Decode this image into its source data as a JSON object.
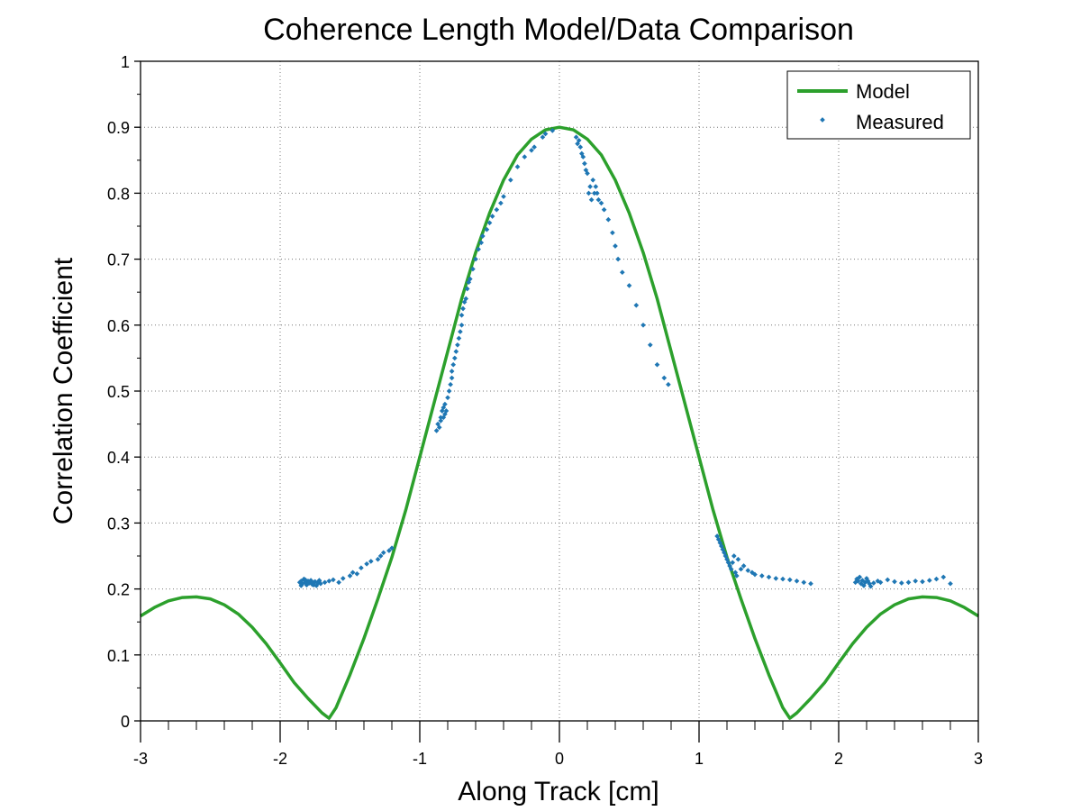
{
  "chart_data": {
    "type": "scatter",
    "title": "Coherence Length Model/Data Comparison",
    "xlabel": "Along Track [cm]",
    "ylabel": "Correlation Coefficient",
    "xlim": [
      -3,
      3
    ],
    "ylim": [
      0,
      1
    ],
    "x_ticks": [
      "-3",
      "-2",
      "-1",
      "0",
      "1",
      "2",
      "3"
    ],
    "x_tick_values": [
      -3,
      -2,
      -1,
      0,
      1,
      2,
      3
    ],
    "y_ticks": [
      "0",
      "0.1",
      "0.2",
      "0.3",
      "0.4",
      "0.5",
      "0.6",
      "0.7",
      "0.8",
      "0.9",
      "1"
    ],
    "y_tick_values": [
      0,
      0.1,
      0.2,
      0.3,
      0.4,
      0.5,
      0.6,
      0.7,
      0.8,
      0.9,
      1
    ],
    "grid": true,
    "legend_position": "top-right",
    "series": [
      {
        "name": "Model",
        "kind": "line",
        "color": "#2ca02c",
        "x": [
          -3.0,
          -2.9,
          -2.8,
          -2.7,
          -2.6,
          -2.5,
          -2.4,
          -2.3,
          -2.2,
          -2.1,
          -2.0,
          -1.9,
          -1.8,
          -1.7,
          -1.65,
          -1.6,
          -1.5,
          -1.4,
          -1.3,
          -1.2,
          -1.1,
          -1.0,
          -0.9,
          -0.8,
          -0.7,
          -0.6,
          -0.5,
          -0.4,
          -0.3,
          -0.2,
          -0.1,
          0.0,
          0.1,
          0.2,
          0.3,
          0.4,
          0.5,
          0.6,
          0.7,
          0.8,
          0.9,
          1.0,
          1.1,
          1.2,
          1.3,
          1.4,
          1.5,
          1.6,
          1.65,
          1.7,
          1.8,
          1.9,
          2.0,
          2.1,
          2.2,
          2.3,
          2.4,
          2.5,
          2.6,
          2.7,
          2.8,
          2.9,
          3.0
        ],
        "y": [
          0.159,
          0.172,
          0.182,
          0.187,
          0.188,
          0.185,
          0.176,
          0.162,
          0.142,
          0.117,
          0.088,
          0.058,
          0.034,
          0.012,
          0.004,
          0.02,
          0.07,
          0.125,
          0.185,
          0.248,
          0.32,
          0.4,
          0.48,
          0.56,
          0.64,
          0.71,
          0.77,
          0.82,
          0.858,
          0.882,
          0.896,
          0.9,
          0.896,
          0.882,
          0.858,
          0.82,
          0.77,
          0.71,
          0.64,
          0.56,
          0.48,
          0.4,
          0.32,
          0.248,
          0.185,
          0.125,
          0.07,
          0.02,
          0.004,
          0.012,
          0.034,
          0.058,
          0.088,
          0.117,
          0.142,
          0.162,
          0.176,
          0.185,
          0.188,
          0.187,
          0.182,
          0.172,
          0.159
        ]
      },
      {
        "name": "Measured",
        "kind": "scatter",
        "color": "#1f77b4",
        "x": [
          -1.86,
          -1.85,
          -1.84,
          -1.83,
          -1.82,
          -1.81,
          -1.8,
          -1.79,
          -1.78,
          -1.77,
          -1.76,
          -1.75,
          -1.74,
          -1.73,
          -1.72,
          -1.71,
          -1.85,
          -1.82,
          -1.79,
          -1.76,
          -1.72,
          -1.68,
          -1.65,
          -1.62,
          -1.58,
          -1.55,
          -1.5,
          -1.48,
          -1.45,
          -1.42,
          -1.38,
          -1.35,
          -1.3,
          -1.28,
          -1.26,
          -1.22,
          -1.2,
          -0.88,
          -0.87,
          -0.86,
          -0.85,
          -0.85,
          -0.84,
          -0.83,
          -0.83,
          -0.82,
          -0.82,
          -0.81,
          -0.8,
          -0.79,
          -0.78,
          -0.77,
          -0.77,
          -0.76,
          -0.75,
          -0.74,
          -0.73,
          -0.72,
          -0.71,
          -0.7,
          -0.7,
          -0.69,
          -0.68,
          -0.67,
          -0.66,
          -0.65,
          -0.64,
          -0.62,
          -0.6,
          -0.58,
          -0.56,
          -0.55,
          -0.52,
          -0.5,
          -0.48,
          -0.45,
          -0.42,
          -0.4,
          -0.35,
          -0.3,
          -0.25,
          -0.2,
          -0.18,
          -0.12,
          -0.1,
          -0.05,
          0.12,
          0.13,
          0.14,
          0.15,
          0.16,
          0.17,
          0.18,
          0.19,
          0.2,
          0.21,
          0.22,
          0.23,
          0.24,
          0.25,
          0.26,
          0.27,
          0.28,
          0.3,
          0.32,
          0.35,
          0.38,
          0.4,
          0.42,
          0.45,
          0.5,
          0.55,
          0.6,
          0.65,
          0.7,
          0.75,
          0.78,
          1.13,
          1.14,
          1.15,
          1.16,
          1.17,
          1.18,
          1.19,
          1.2,
          1.21,
          1.22,
          1.23,
          1.24,
          1.25,
          1.26,
          1.27,
          1.28,
          1.3,
          1.32,
          1.35,
          1.38,
          1.4,
          1.45,
          1.5,
          1.55,
          1.6,
          1.65,
          1.7,
          1.75,
          1.8,
          2.12,
          2.13,
          2.14,
          2.15,
          2.16,
          2.17,
          2.18,
          2.19,
          2.2,
          2.21,
          2.22,
          2.23,
          2.25,
          2.28,
          2.3,
          2.35,
          2.4,
          2.45,
          2.5,
          2.55,
          2.6,
          2.65,
          2.7,
          2.75,
          2.8
        ],
        "y": [
          0.21,
          0.212,
          0.208,
          0.215,
          0.21,
          0.206,
          0.212,
          0.209,
          0.213,
          0.207,
          0.21,
          0.211,
          0.205,
          0.209,
          0.212,
          0.208,
          0.205,
          0.214,
          0.211,
          0.206,
          0.213,
          0.21,
          0.212,
          0.214,
          0.21,
          0.216,
          0.22,
          0.225,
          0.223,
          0.232,
          0.238,
          0.242,
          0.245,
          0.25,
          0.255,
          0.258,
          0.262,
          0.44,
          0.45,
          0.445,
          0.46,
          0.455,
          0.47,
          0.46,
          0.475,
          0.465,
          0.48,
          0.47,
          0.49,
          0.5,
          0.51,
          0.52,
          0.53,
          0.54,
          0.55,
          0.56,
          0.57,
          0.58,
          0.59,
          0.6,
          0.615,
          0.625,
          0.635,
          0.64,
          0.655,
          0.665,
          0.67,
          0.685,
          0.7,
          0.715,
          0.725,
          0.735,
          0.745,
          0.755,
          0.765,
          0.775,
          0.785,
          0.795,
          0.82,
          0.84,
          0.855,
          0.865,
          0.87,
          0.885,
          0.89,
          0.895,
          0.885,
          0.875,
          0.88,
          0.87,
          0.86,
          0.855,
          0.845,
          0.835,
          0.83,
          0.8,
          0.81,
          0.79,
          0.82,
          0.8,
          0.81,
          0.8,
          0.79,
          0.785,
          0.775,
          0.76,
          0.74,
          0.72,
          0.7,
          0.68,
          0.66,
          0.63,
          0.6,
          0.57,
          0.54,
          0.52,
          0.51,
          0.28,
          0.275,
          0.27,
          0.265,
          0.26,
          0.255,
          0.25,
          0.245,
          0.24,
          0.235,
          0.23,
          0.24,
          0.25,
          0.225,
          0.22,
          0.245,
          0.23,
          0.235,
          0.228,
          0.225,
          0.222,
          0.22,
          0.218,
          0.216,
          0.215,
          0.214,
          0.212,
          0.21,
          0.208,
          0.21,
          0.215,
          0.212,
          0.218,
          0.208,
          0.213,
          0.205,
          0.21,
          0.216,
          0.212,
          0.208,
          0.204,
          0.209,
          0.212,
          0.21,
          0.214,
          0.211,
          0.209,
          0.21,
          0.212,
          0.211,
          0.213,
          0.215,
          0.218,
          0.208
        ]
      }
    ]
  }
}
